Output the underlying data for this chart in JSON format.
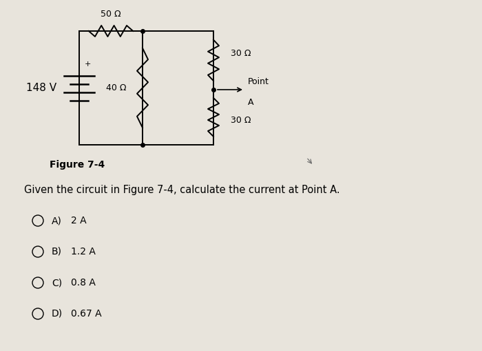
{
  "bg_color": "#e8e4dc",
  "figure_label": "Figure 7-4",
  "question_text": "Given the circuit in Figure 7-4, calculate the current at Point A.",
  "options": [
    {
      "label": "A)",
      "value": "2 A"
    },
    {
      "label": "B)",
      "value": "1.2 A"
    },
    {
      "label": "C)",
      "value": "0.8 A"
    },
    {
      "label": "D)",
      "value": "0.67 A"
    }
  ],
  "circuit": {
    "voltage_label": "148 V",
    "r1_label": "50 Ω",
    "r2_label": "40 Ω",
    "r3_label": "30 Ω",
    "r4_label": "30 Ω"
  },
  "lw": 1.4
}
